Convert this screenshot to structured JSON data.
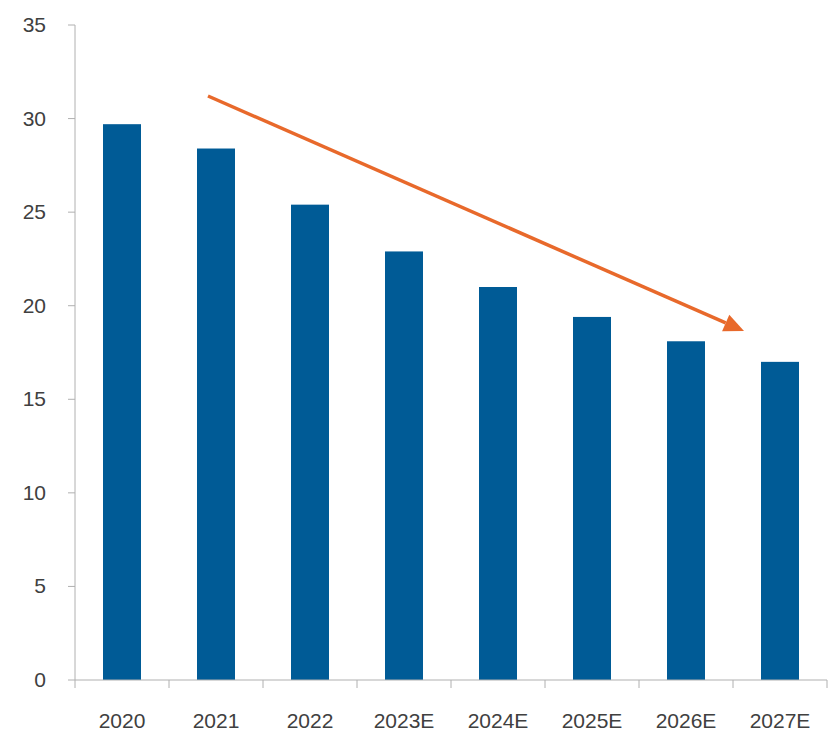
{
  "chart_data": {
    "type": "bar",
    "categories": [
      "2020",
      "2021",
      "2022",
      "2023E",
      "2024E",
      "2025E",
      "2026E",
      "2027E"
    ],
    "values": [
      29.7,
      28.4,
      25.4,
      22.9,
      21.0,
      19.4,
      18.1,
      17.0
    ],
    "color": "#005b96",
    "ylim": [
      0,
      35
    ],
    "yticks": [
      0,
      5,
      10,
      15,
      20,
      25,
      30,
      35
    ],
    "grid": false
  }
}
